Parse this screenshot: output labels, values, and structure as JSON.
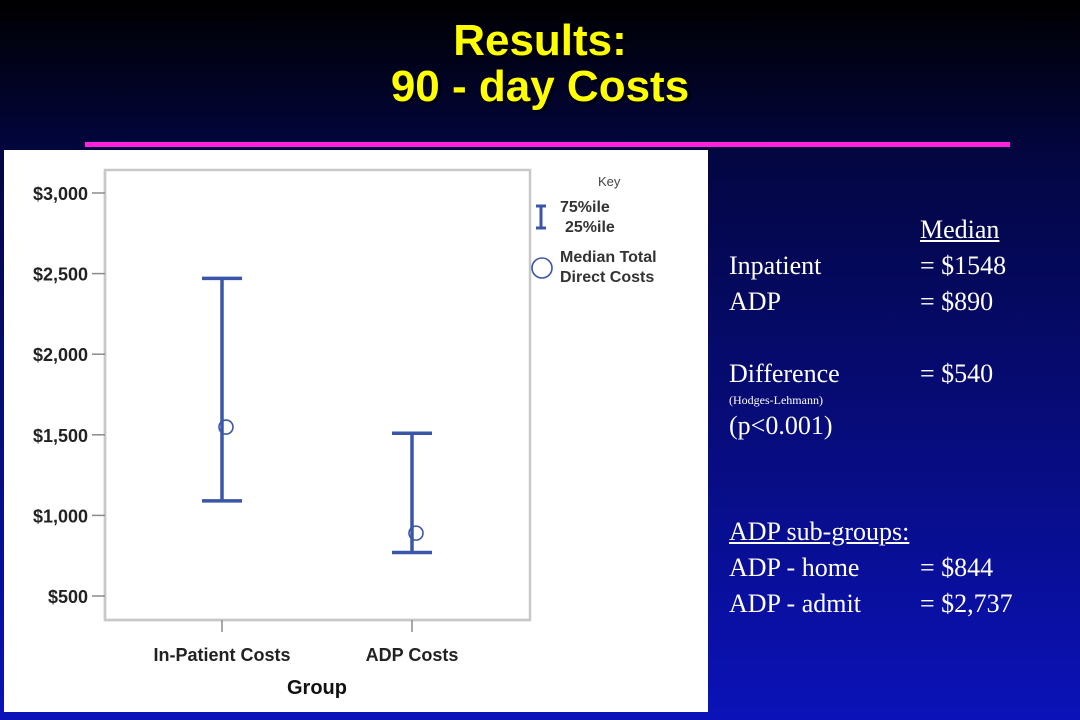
{
  "slide": {
    "title_line1": "Results:",
    "title_line2": "90 - day Costs"
  },
  "summary": {
    "median_header": "Median",
    "rows": [
      {
        "label": "Inpatient",
        "value": "= $1548"
      },
      {
        "label": "ADP",
        "value": "= $890"
      },
      {
        "label": "Difference",
        "value": "= $540"
      }
    ],
    "method_note": "(Hodges-Lehmann)",
    "p_value": "(p<0.001)",
    "subgroups_header": "ADP sub-groups:",
    "subgroups": [
      {
        "label": "ADP - home",
        "value": "= $844"
      },
      {
        "label": "ADP - admit",
        "value": "= $2,737"
      }
    ]
  },
  "colors": {
    "accent_title": "#ffff00",
    "rule": "#ff22dd",
    "series": "#3a56a8"
  },
  "chart_data": {
    "type": "errorbar",
    "xlabel": "Group",
    "ylabel": "",
    "ylim": [
      500,
      3000
    ],
    "yticks": [
      500,
      1000,
      1500,
      2000,
      2500,
      3000
    ],
    "ytick_labels": [
      "$500",
      "$1,000",
      "$1,500",
      "$2,000",
      "$2,500",
      "$3,000"
    ],
    "categories": [
      "In-Patient Costs",
      "ADP Costs"
    ],
    "p25": [
      1090,
      770
    ],
    "median": [
      1548,
      890
    ],
    "p75": [
      2470,
      1510
    ],
    "grid": false,
    "legend": {
      "title": "Key",
      "placement": "top-right",
      "bar_label_top": "75%ile",
      "bar_label_bottom": "25%ile",
      "marker_label_line1": "Median Total",
      "marker_label_line2": "Direct Costs"
    }
  }
}
